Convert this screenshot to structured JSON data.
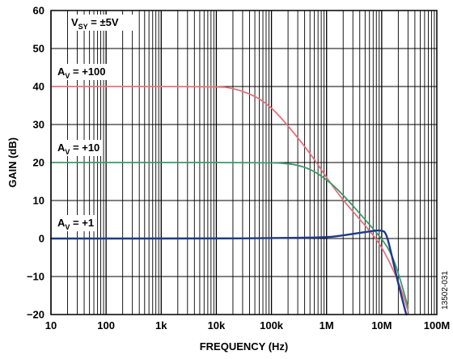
{
  "chart_data": {
    "type": "line",
    "xlabel": "FREQUENCY (Hz)",
    "ylabel": "GAIN (dB)",
    "xscale": "log",
    "xlim": [
      10,
      100000000
    ],
    "ylim": [
      -20,
      60
    ],
    "grid": true,
    "x_tick_labels": [
      "10",
      "100",
      "1k",
      "10k",
      "100k",
      "1M",
      "10M",
      "100M"
    ],
    "y_tick_labels": [
      "60",
      "50",
      "40",
      "30",
      "20",
      "10",
      "0",
      "−10",
      "−20"
    ],
    "annotations": [
      {
        "label": "V",
        "sub": "SY",
        "rest": " = ±5V"
      },
      {
        "label": "A",
        "sub": "V",
        "rest": " = +100"
      },
      {
        "label": "A",
        "sub": "V",
        "rest": " = +10"
      },
      {
        "label": "A",
        "sub": "V",
        "rest": " = +1"
      }
    ],
    "figure_code": "13502-031",
    "series": [
      {
        "color": "#e8707a",
        "x": [
          10,
          10000,
          20000,
          50000,
          100000,
          200000,
          500000,
          1000000,
          2000000,
          5000000,
          10000000,
          20000000,
          30000000
        ],
        "y": [
          40,
          40,
          39.6,
          37.6,
          34.5,
          29.7,
          22.5,
          16,
          10,
          3.5,
          -2,
          -11,
          -19
        ]
      },
      {
        "color": "#3a9a6a",
        "x": [
          10,
          100000,
          200000,
          300000,
          500000,
          1000000,
          2000000,
          5000000,
          10000000,
          15000000,
          20000000,
          30000000
        ],
        "y": [
          20,
          20,
          19.7,
          19.3,
          18.3,
          15.6,
          11.5,
          5,
          0,
          -4,
          -9,
          -18
        ]
      },
      {
        "color": "#1e3a8a",
        "x": [
          10,
          10000,
          100000,
          1000000,
          2000000,
          4000000,
          7000000,
          10000000,
          12000000,
          15000000,
          20000000,
          28000000
        ],
        "y": [
          0,
          0,
          0.1,
          0.3,
          0.8,
          1.5,
          2,
          2.2,
          1.5,
          -4,
          -12,
          -20
        ]
      }
    ]
  }
}
